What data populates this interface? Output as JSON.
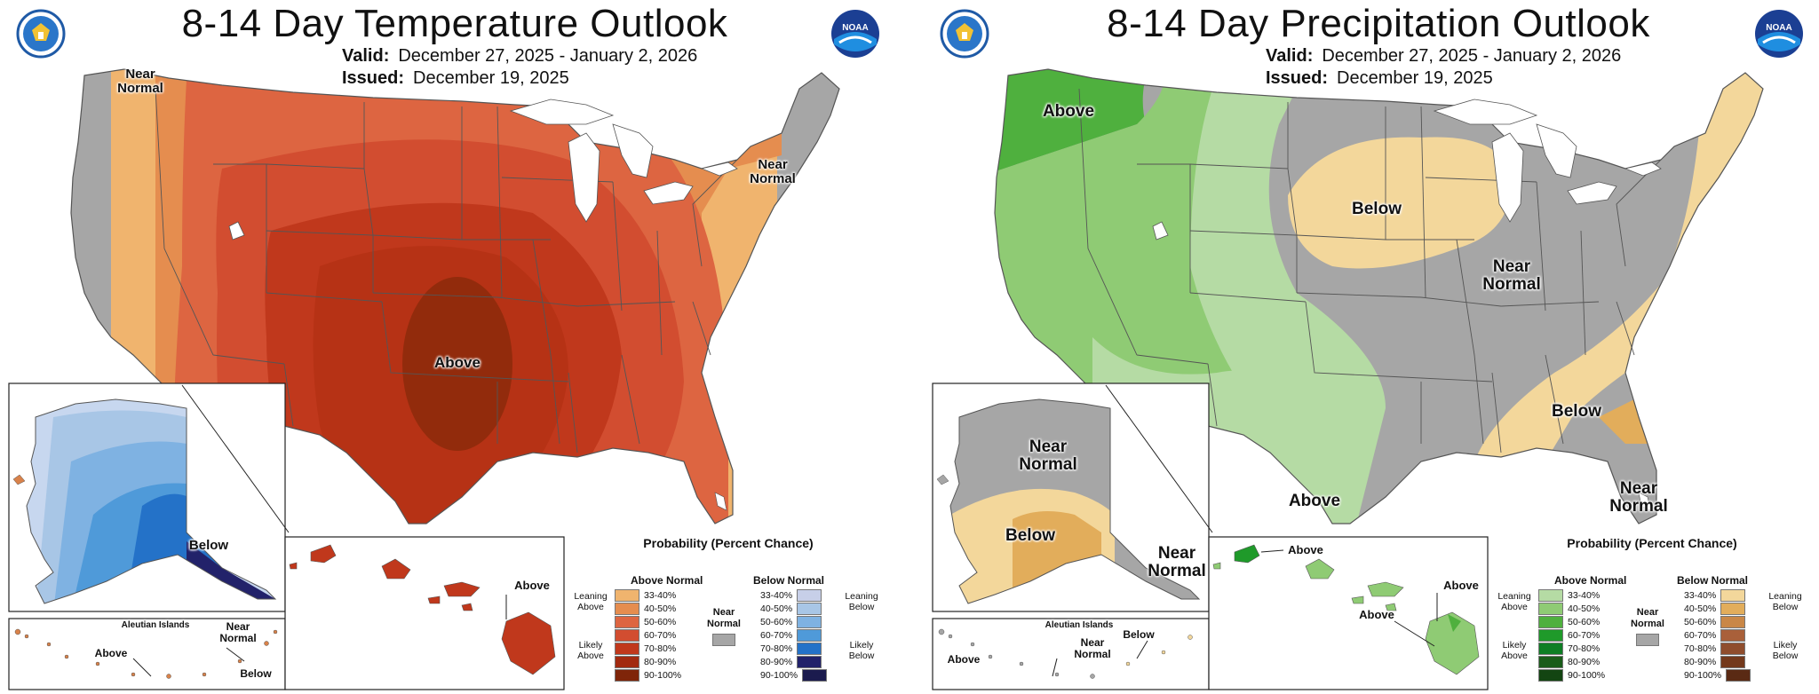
{
  "left": {
    "title": "8-14 Day Temperature Outlook",
    "valid_label": "Valid:",
    "valid_value": "December 27, 2025 - January 2, 2026",
    "issued_label": "Issued:",
    "issued_value": "December 19, 2025",
    "labels": {
      "near_normal_nw": "Near Normal",
      "near_normal_ne": "Near Normal",
      "above_center": "Above",
      "ak_below": "Below",
      "aleutian_title": "Aleutian Islands",
      "aleutian_near": "Near Normal",
      "aleutian_above": "Above",
      "aleutian_below": "Below",
      "hawaii_above": "Above"
    },
    "legend": {
      "title": "Probability (Percent Chance)",
      "above_head": "Above Normal",
      "below_head": "Below Normal",
      "leaning_left": "Leaning Above",
      "likely_left": "Likely Above",
      "leaning_right": "Leaning Below",
      "likely_right": "Likely Below",
      "near_normal": "Near Normal",
      "ranges": [
        "33-40%",
        "40-50%",
        "50-60%",
        "60-70%",
        "70-80%",
        "80-90%",
        "90-100%"
      ],
      "above_colors": [
        "#f0b46e",
        "#e58d4f",
        "#dd6541",
        "#d24d30",
        "#c0381c",
        "#a22a10",
        "#7f2509"
      ],
      "below_colors": [
        "#c7cfe8",
        "#a8c6e6",
        "#7fb2e2",
        "#4f9ad9",
        "#2472c8",
        "#22226a",
        "#1b1b4e"
      ]
    }
  },
  "right": {
    "title": "8-14 Day Precipitation Outlook",
    "valid_label": "Valid:",
    "valid_value": "December 27, 2025 - January 2, 2026",
    "issued_label": "Issued:",
    "issued_value": "December 19, 2025",
    "labels": {
      "above_nw": "Above",
      "below_north": "Below",
      "near_normal_center": "Near Normal",
      "below_se": "Below",
      "above_tx": "Above",
      "near_normal_fl": "Near Normal",
      "ak_near_normal": "Near Normal",
      "ak_below": "Below",
      "ak_near_normal_se": "Near Normal",
      "aleutian_title": "Aleutian Islands",
      "aleutian_near": "Near Normal",
      "aleutian_below": "Below",
      "aleutian_above": "Above",
      "hawaii_above_top": "Above",
      "hawaii_above_right": "Above",
      "hawaii_above_left": "Above"
    },
    "legend": {
      "title": "Probability (Percent Chance)",
      "above_head": "Above Normal",
      "below_head": "Below Normal",
      "leaning_left": "Leaning Above",
      "likely_left": "Likely Above",
      "leaning_right": "Leaning Below",
      "likely_right": "Likely Below",
      "near_normal": "Near Normal",
      "ranges": [
        "33-40%",
        "40-50%",
        "50-60%",
        "60-70%",
        "70-80%",
        "80-90%",
        "90-100%"
      ],
      "above_colors": [
        "#b5dba4",
        "#8fcb74",
        "#4fb03e",
        "#1f9a2a",
        "#0e7e24",
        "#1a5c1a",
        "#134512"
      ],
      "below_colors": [
        "#f3d79b",
        "#e2ad5b",
        "#c98747",
        "#a9603a",
        "#8f4d2d",
        "#73391c",
        "#5a2a14"
      ]
    }
  },
  "colors": {
    "near_normal_gray": "#a6a6a6",
    "lake_white": "#ffffff",
    "border_gray": "#555555"
  },
  "icons": [
    "doc-seal-icon",
    "noaa-logo-icon"
  ]
}
